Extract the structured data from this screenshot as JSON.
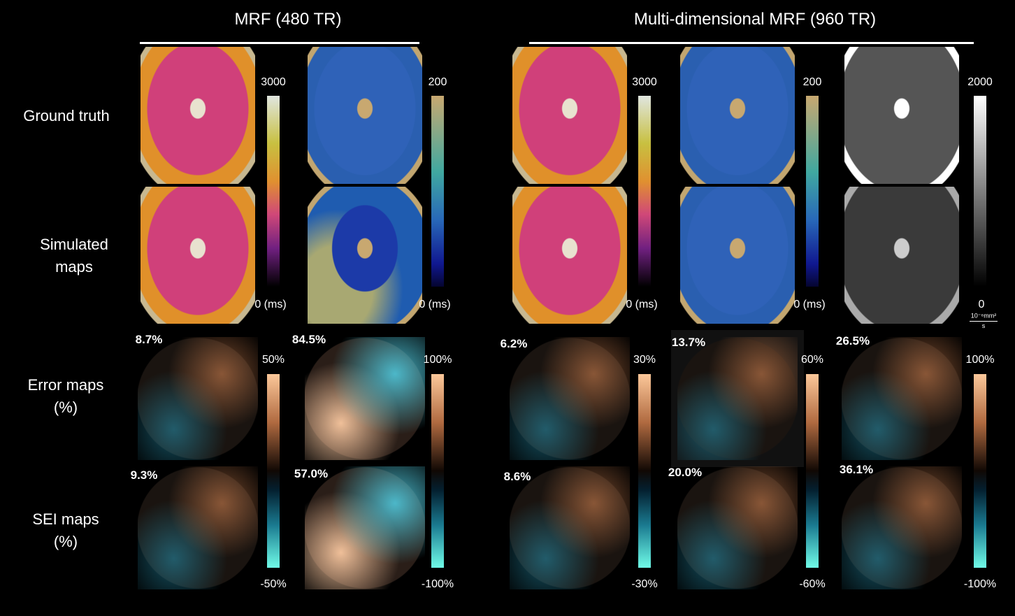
{
  "headers": [
    "MRF (480 TR)",
    "Multi-dimensional MRF (960 TR)"
  ],
  "row_labels": [
    [
      "Ground truth"
    ],
    [
      "Simulated",
      "maps"
    ],
    [
      "Error maps",
      "(%)"
    ],
    [
      "SEI maps",
      "(%)"
    ]
  ],
  "map_colorbars": [
    {
      "max": "3000",
      "min": "0 (ms)"
    },
    {
      "max": "200",
      "min": "0 (ms)"
    },
    {
      "max": "3000",
      "min": "0 (ms)"
    },
    {
      "max": "200",
      "min": "0 (ms)"
    },
    {
      "max": "2000",
      "min": "0",
      "unit": [
        "10⁻⁶mm²",
        "s"
      ]
    }
  ],
  "error_colorbars": [
    {
      "max": "50%",
      "min": "-50%"
    },
    {
      "max": "100%",
      "min": "-100%"
    },
    {
      "max": "30%",
      "min": "-30%"
    },
    {
      "max": "60%",
      "min": "-60%"
    },
    {
      "max": "100%",
      "min": "-100%"
    }
  ],
  "error_percentages": [
    "8.7%",
    "84.5%",
    "6.2%",
    "13.7%",
    "26.5%"
  ],
  "sei_percentages": [
    "9.3%",
    "57.0%",
    "8.6%",
    "20.0%",
    "36.1%"
  ]
}
